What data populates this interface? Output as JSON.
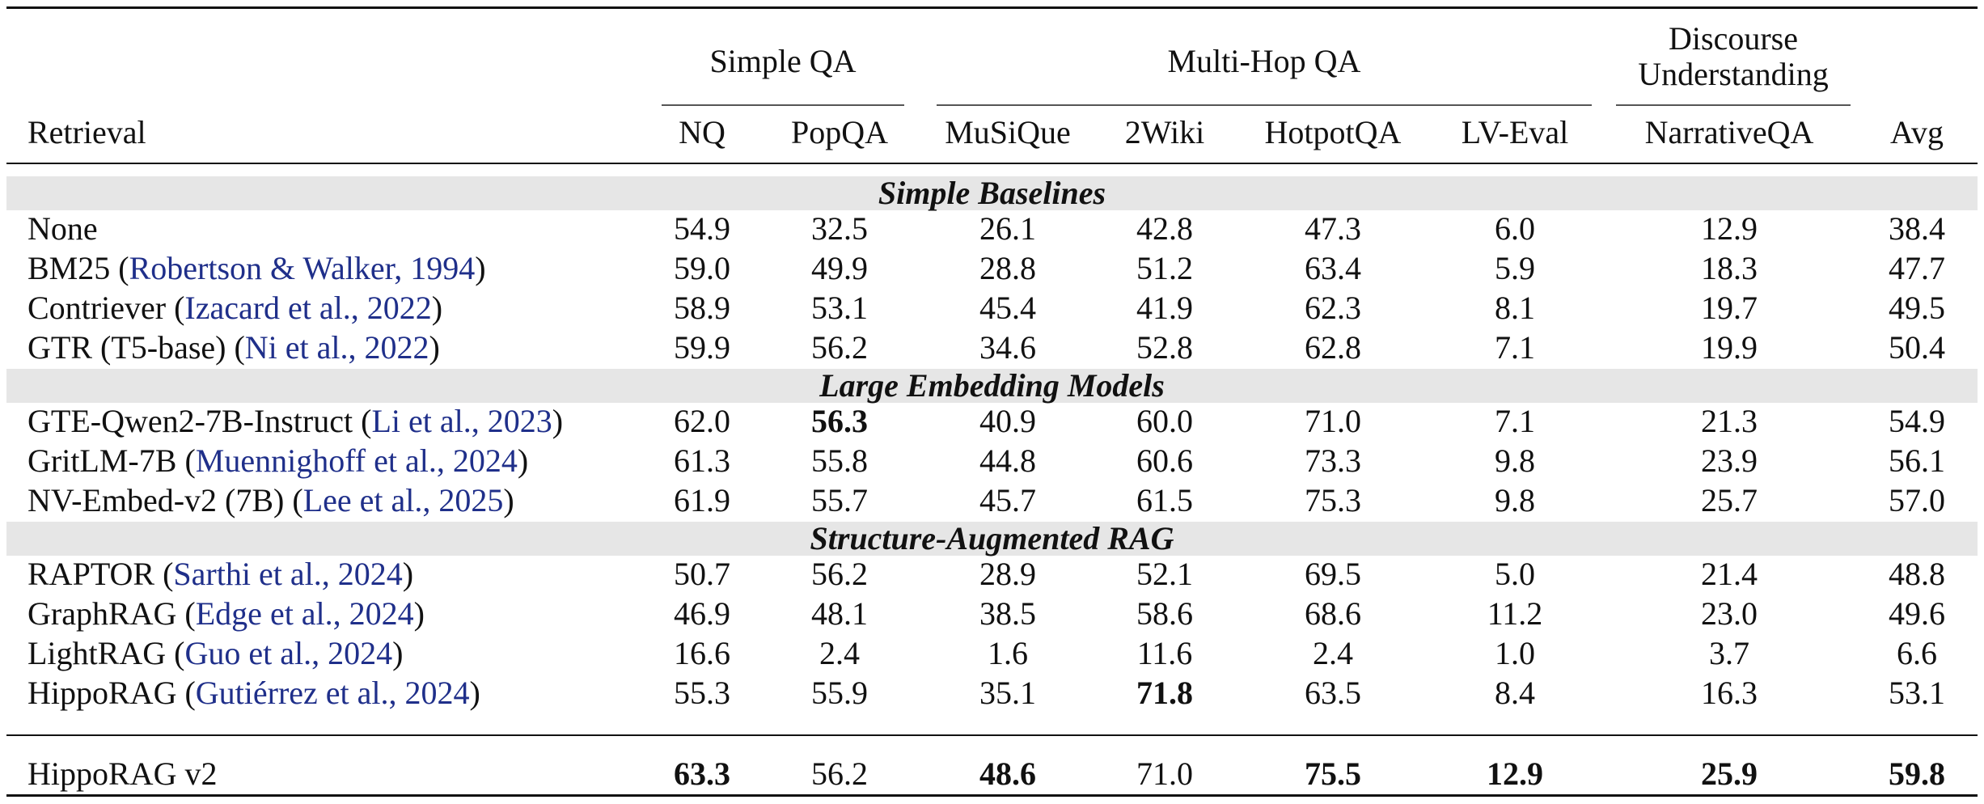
{
  "table": {
    "group_headers": [
      "Simple QA",
      "Multi-Hop QA",
      "Discourse\nUnderstanding"
    ],
    "column_headers": [
      "Retrieval",
      "NQ",
      "PopQA",
      "MuSiQue",
      "2Wiki",
      "HotpotQA",
      "LV-Eval",
      "NarrativeQA",
      "Avg"
    ],
    "sections": [
      {
        "title": "Simple Baselines",
        "rows": [
          {
            "name": "None",
            "cite": "",
            "values": [
              "54.9",
              "32.5",
              "26.1",
              "42.8",
              "47.3",
              "6.0",
              "12.9",
              "38.4"
            ],
            "bold": []
          },
          {
            "name": "BM25",
            "cite": "Robertson & Walker, 1994",
            "values": [
              "59.0",
              "49.9",
              "28.8",
              "51.2",
              "63.4",
              "5.9",
              "18.3",
              "47.7"
            ],
            "bold": []
          },
          {
            "name": "Contriever",
            "cite": "Izacard et al., 2022",
            "values": [
              "58.9",
              "53.1",
              "45.4",
              "41.9",
              "62.3",
              "8.1",
              "19.7",
              "49.5"
            ],
            "bold": []
          },
          {
            "name": "GTR (T5-base)",
            "cite": "Ni et al., 2022",
            "values": [
              "59.9",
              "56.2",
              "34.6",
              "52.8",
              "62.8",
              "7.1",
              "19.9",
              "50.4"
            ],
            "bold": []
          }
        ]
      },
      {
        "title": "Large Embedding Models",
        "rows": [
          {
            "name": "GTE-Qwen2-7B-Instruct",
            "cite": "Li et al., 2023",
            "values": [
              "62.0",
              "56.3",
              "40.9",
              "60.0",
              "71.0",
              "7.1",
              "21.3",
              "54.9"
            ],
            "bold": [
              1
            ]
          },
          {
            "name": "GritLM-7B",
            "cite": "Muennighoff et al., 2024",
            "values": [
              "61.3",
              "55.8",
              "44.8",
              "60.6",
              "73.3",
              "9.8",
              "23.9",
              "56.1"
            ],
            "bold": []
          },
          {
            "name": "NV-Embed-v2 (7B)",
            "cite": "Lee et al., 2025",
            "values": [
              "61.9",
              "55.7",
              "45.7",
              "61.5",
              "75.3",
              "9.8",
              "25.7",
              "57.0"
            ],
            "bold": []
          }
        ]
      },
      {
        "title": "Structure-Augmented RAG",
        "rows": [
          {
            "name": "RAPTOR",
            "cite": "Sarthi et al., 2024",
            "values": [
              "50.7",
              "56.2",
              "28.9",
              "52.1",
              "69.5",
              "5.0",
              "21.4",
              "48.8"
            ],
            "bold": []
          },
          {
            "name": "GraphRAG",
            "cite": "Edge et al., 2024",
            "values": [
              "46.9",
              "48.1",
              "38.5",
              "58.6",
              "68.6",
              "11.2",
              "23.0",
              "49.6"
            ],
            "bold": []
          },
          {
            "name": "LightRAG",
            "cite": "Guo et al., 2024",
            "values": [
              "16.6",
              "2.4",
              "1.6",
              "11.6",
              "2.4",
              "1.0",
              "3.7",
              "6.6"
            ],
            "bold": []
          },
          {
            "name": "HippoRAG",
            "cite": "Gutiérrez et al., 2024",
            "values": [
              "55.3",
              "55.9",
              "35.1",
              "71.8",
              "63.5",
              "8.4",
              "16.3",
              "53.1"
            ],
            "bold": [
              3
            ]
          }
        ]
      }
    ],
    "final_row": {
      "name": "HippoRAG v2",
      "cite": "",
      "values": [
        "63.3",
        "56.2",
        "48.6",
        "71.0",
        "75.5",
        "12.9",
        "25.9",
        "59.8"
      ],
      "bold": [
        0,
        2,
        4,
        5,
        6,
        7
      ]
    }
  }
}
